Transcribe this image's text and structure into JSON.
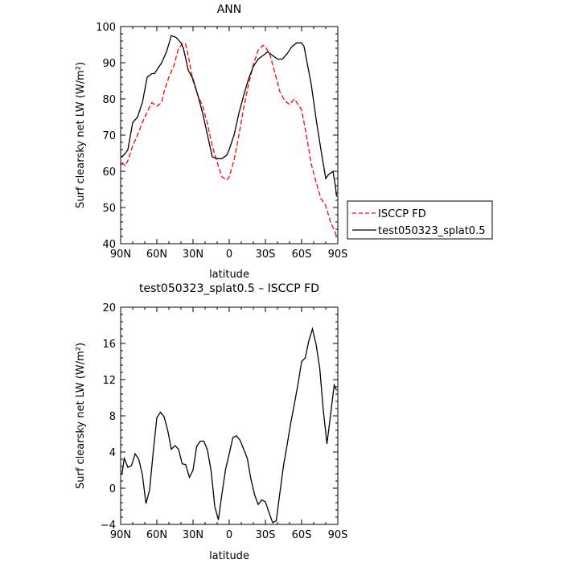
{
  "chart_data": [
    {
      "type": "line",
      "title": "ANN",
      "xlabel": "latitude",
      "ylabel": "Surf clearsky net LW (W/m²)",
      "xlim": [
        -90,
        90
      ],
      "ylim": [
        40,
        100
      ],
      "x_ticks": [
        -90,
        -60,
        -30,
        0,
        30,
        60,
        90
      ],
      "x_tick_labels": [
        "90N",
        "60N",
        "30N",
        "0",
        "30S",
        "60S",
        "90S"
      ],
      "y_ticks": [
        40,
        50,
        60,
        70,
        80,
        90,
        100
      ],
      "y_tick_labels": [
        "40",
        "50",
        "60",
        "70",
        "80",
        "90",
        "100"
      ],
      "legend_position": "right",
      "series": [
        {
          "name": "ISCCP FD",
          "color": "#ff0000",
          "dash": "dashed",
          "x": [
            -89,
            -86,
            -84,
            -80,
            -76,
            -72,
            -68,
            -64,
            -60,
            -56,
            -54,
            -50,
            -46,
            -42,
            -38,
            -36,
            -34,
            -30,
            -26,
            -22,
            -18,
            -14,
            -10,
            -6,
            -2,
            0,
            4,
            8,
            12,
            16,
            20,
            24,
            28,
            30,
            34,
            38,
            42,
            46,
            50,
            54,
            56,
            58,
            60,
            64,
            68,
            72,
            76,
            80,
            84,
            88,
            89
          ],
          "y": [
            62.5,
            61.5,
            63,
            67,
            70,
            73.5,
            76.5,
            79,
            78,
            79,
            82,
            86,
            89,
            94,
            95.5,
            95,
            92,
            85,
            81,
            78,
            73,
            67,
            62.5,
            58.5,
            57.5,
            58.5,
            63,
            70,
            77.5,
            84,
            89.5,
            93.5,
            94.8,
            94.5,
            92,
            87,
            82,
            79.5,
            78.5,
            80,
            79,
            78,
            77,
            70,
            62,
            57,
            52.5,
            50.5,
            46,
            43,
            42
          ]
        },
        {
          "name": "test050323_splat0.5",
          "color": "#000000",
          "dash": "solid",
          "x": [
            -89,
            -86,
            -84,
            -80,
            -76,
            -72,
            -68,
            -64,
            -62,
            -60,
            -56,
            -52,
            -48,
            -44,
            -40,
            -38,
            -36,
            -34,
            -30,
            -26,
            -22,
            -18,
            -14,
            -10,
            -6,
            -2,
            0,
            4,
            8,
            12,
            16,
            20,
            24,
            28,
            32,
            36,
            40,
            44,
            48,
            52,
            56,
            60,
            62,
            64,
            68,
            72,
            76,
            80,
            82,
            86,
            88,
            89
          ],
          "y": [
            64,
            65,
            66,
            73.5,
            75,
            79,
            86,
            87,
            87,
            88,
            90,
            93,
            97.5,
            97,
            95.5,
            94,
            91,
            88,
            85.5,
            81,
            76,
            70,
            64,
            63.5,
            63.5,
            64.5,
            66,
            70,
            76,
            81,
            85.5,
            89,
            91,
            92,
            93,
            92,
            91,
            91,
            92.5,
            94.5,
            95.5,
            95.5,
            94.5,
            91,
            84,
            74.5,
            66,
            58,
            59,
            60,
            56,
            53
          ]
        }
      ]
    },
    {
      "type": "line",
      "title": "test050323_splat0.5 – ISCCP FD",
      "xlabel": "latitude",
      "ylabel": "Surf clearsky net LW (W/m²)",
      "xlim": [
        -90,
        90
      ],
      "ylim": [
        -4,
        20
      ],
      "x_ticks": [
        -90,
        -60,
        -30,
        0,
        30,
        60,
        90
      ],
      "x_tick_labels": [
        "90N",
        "60N",
        "30N",
        "0",
        "30S",
        "60S",
        "90S"
      ],
      "y_ticks": [
        -4,
        0,
        4,
        8,
        12,
        16,
        20
      ],
      "y_tick_labels": [
        "−4",
        "0",
        "4",
        "8",
        "12",
        "16",
        "20"
      ],
      "series": [
        {
          "color": "#000000",
          "x": [
            -89,
            -87,
            -84,
            -81,
            -78,
            -75,
            -72,
            -69,
            -66,
            -63,
            -60,
            -57,
            -54,
            -51,
            -48,
            -45,
            -42,
            -39,
            -36,
            -33,
            -30,
            -27,
            -24,
            -21,
            -18,
            -15,
            -12,
            -9,
            -6,
            -3,
            0,
            3,
            6,
            9,
            12,
            15,
            18,
            21,
            24,
            27,
            30,
            33,
            36,
            39,
            42,
            45,
            48,
            51,
            54,
            57,
            60,
            63,
            66,
            69,
            72,
            75,
            78,
            81,
            84,
            87,
            89
          ],
          "y": [
            1.5,
            3.3,
            2.3,
            2.5,
            3.8,
            3.2,
            1.5,
            -1.7,
            -0.2,
            4,
            7.8,
            8.4,
            7.9,
            6.4,
            4.3,
            4.7,
            4.3,
            2.7,
            2.6,
            1.2,
            2,
            4.6,
            5.2,
            5.2,
            4.2,
            1.9,
            -2,
            -3.5,
            -0.6,
            2.1,
            3.8,
            5.6,
            5.8,
            5.3,
            4.3,
            3.3,
            1,
            -0.7,
            -1.8,
            -1.3,
            -1.5,
            -2.7,
            -3.8,
            -3.6,
            -0.5,
            2.5,
            4.8,
            7.2,
            9.3,
            11.5,
            14,
            14.4,
            16.3,
            17.6,
            15.9,
            13.3,
            8.6,
            4.9,
            8.1,
            11.4,
            10.8
          ]
        }
      ]
    }
  ]
}
